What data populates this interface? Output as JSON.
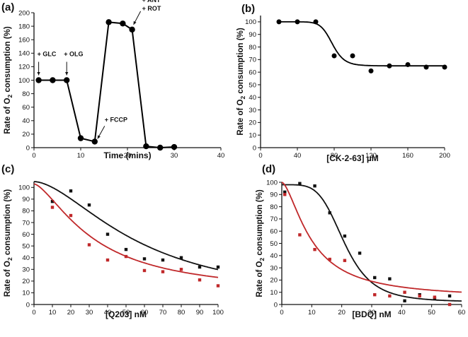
{
  "chart_data": [
    {
      "panel": "(a)",
      "type": "line",
      "xlabel": "Time (mins)",
      "ylabel": "Rate of O2 consumption (%)",
      "xlim": [
        0,
        40
      ],
      "ylim": [
        0,
        200
      ],
      "xticks": [
        0,
        10,
        20,
        30,
        40
      ],
      "yticks": [
        0,
        20,
        40,
        60,
        80,
        100,
        120,
        140,
        160,
        180,
        200
      ],
      "series": [
        {
          "name": "O2 consumption",
          "color": "#000000",
          "x": [
            1,
            4,
            7,
            10,
            13,
            16,
            19,
            21,
            24,
            27,
            30
          ],
          "y": [
            100,
            100,
            100,
            14,
            9,
            186,
            184,
            175,
            2,
            0,
            1
          ]
        }
      ],
      "annotations": [
        {
          "text": "+ GLC",
          "x": 1,
          "y": 100
        },
        {
          "text": "+ OLG",
          "x": 7,
          "y": 100
        },
        {
          "text": "+ FCCP",
          "x": 13,
          "y": 9
        },
        {
          "text": "+ ANT",
          "x": 21,
          "y": 175
        },
        {
          "text": "+ ROT",
          "x": 21,
          "y": 175
        }
      ]
    },
    {
      "panel": "(b)",
      "type": "scatter",
      "xlabel": "[CK-2-63] µM",
      "ylabel": "Rate of O2 consumption (%)",
      "xlim": [
        0,
        200
      ],
      "ylim": [
        0,
        105
      ],
      "xticks": [
        0,
        40,
        80,
        120,
        160,
        200
      ],
      "yticks": [
        0,
        10,
        20,
        30,
        40,
        50,
        60,
        70,
        80,
        90,
        100
      ],
      "series": [
        {
          "name": "CK-2-63",
          "color": "#000000",
          "x": [
            20,
            40,
            60,
            80,
            100,
            120,
            140,
            160,
            180,
            200
          ],
          "y": [
            100,
            100,
            100,
            73,
            73,
            61,
            65,
            66,
            64,
            64
          ],
          "fit": {
            "top": 100,
            "bottom": 65,
            "ic50": 78,
            "hill": 12
          }
        }
      ]
    },
    {
      "panel": "(c)",
      "type": "scatter",
      "xlabel": "[Q203] nM",
      "ylabel": "Rate of O2 consumption (%)",
      "xlim": [
        0,
        100
      ],
      "ylim": [
        0,
        105
      ],
      "xticks": [
        0,
        10,
        20,
        30,
        40,
        50,
        60,
        70,
        80,
        90,
        100
      ],
      "yticks": [
        0,
        10,
        20,
        30,
        40,
        50,
        60,
        70,
        80,
        90,
        100
      ],
      "series": [
        {
          "name": "black",
          "color": "#111111",
          "x": [
            10,
            20,
            30,
            40,
            50,
            60,
            70,
            80,
            90,
            100
          ],
          "y": [
            88,
            97,
            85,
            60,
            47,
            39,
            38,
            40,
            32,
            32
          ],
          "fit": {
            "top": 105,
            "bottom": 0,
            "ic50": 58,
            "hill": 1.7
          }
        },
        {
          "name": "red",
          "color": "#c0282a",
          "x": [
            10,
            20,
            30,
            40,
            50,
            60,
            70,
            80,
            90,
            100
          ],
          "y": [
            83,
            76,
            51,
            38,
            41,
            29,
            28,
            30,
            21,
            16
          ],
          "fit": {
            "top": 103,
            "bottom": 8,
            "ic50": 33,
            "hill": 1.5
          }
        }
      ]
    },
    {
      "panel": "(d)",
      "type": "scatter",
      "xlabel": "[BDQ] nM",
      "ylabel": "Rate of O2 consumption (%)",
      "xlim": [
        0,
        60
      ],
      "ylim": [
        0,
        100
      ],
      "xticks": [
        0,
        10,
        20,
        30,
        40,
        50,
        60
      ],
      "yticks": [
        0,
        10,
        20,
        30,
        40,
        50,
        60,
        70,
        80,
        90,
        100
      ],
      "series": [
        {
          "name": "black",
          "color": "#111111",
          "x": [
            1,
            6,
            11,
            16,
            21,
            26,
            31,
            36,
            41,
            46,
            51,
            56
          ],
          "y": [
            92,
            99,
            97,
            75,
            56,
            42,
            22,
            21,
            3,
            8,
            5,
            7
          ],
          "fit": {
            "top": 98,
            "bottom": 2,
            "ic50": 21,
            "hill": 4.5
          }
        },
        {
          "name": "red",
          "color": "#c0282a",
          "x": [
            1,
            6,
            11,
            16,
            21,
            31,
            36,
            41,
            46,
            51,
            56
          ],
          "y": [
            90,
            57,
            45,
            37,
            36,
            8,
            7,
            10,
            7,
            6,
            0
          ],
          "fit": {
            "top": 100,
            "bottom": 5,
            "ic50": 10,
            "hill": 1.6
          }
        }
      ]
    }
  ]
}
